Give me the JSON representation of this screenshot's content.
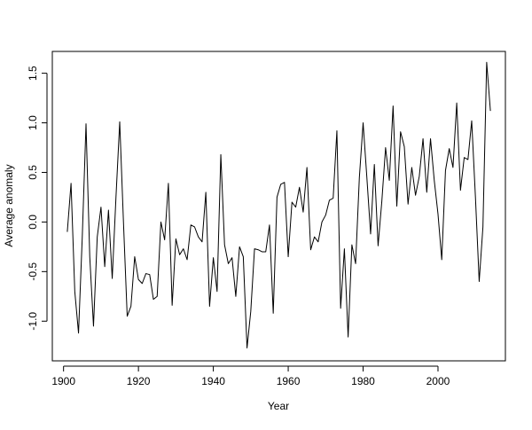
{
  "chart_data": {
    "type": "line",
    "xlabel": "Year",
    "ylabel": "Average anomaly",
    "xlim": [
      1897,
      2018
    ],
    "ylim": [
      -1.4,
      1.72
    ],
    "x_ticks": [
      1900,
      1920,
      1940,
      1960,
      1980,
      2000
    ],
    "y_ticks": [
      -1.0,
      -0.5,
      0.0,
      0.5,
      1.0,
      1.5
    ],
    "y_tick_labels": [
      "-1.0",
      "-0.5",
      "0.0",
      "0.5",
      "1.0",
      "1.5"
    ],
    "grid": false,
    "line_color": "#000000",
    "series": [
      {
        "x": [
          1901,
          1902,
          1903,
          1904,
          1905,
          1906,
          1907,
          1908,
          1909,
          1910,
          1911,
          1912,
          1913,
          1914,
          1915,
          1916,
          1917,
          1918,
          1919,
          1920,
          1921,
          1922,
          1923,
          1924,
          1925,
          1926,
          1927,
          1928,
          1929,
          1930,
          1931,
          1932,
          1933,
          1934,
          1935,
          1936,
          1937,
          1938,
          1939,
          1940,
          1941,
          1942,
          1943,
          1944,
          1945,
          1946,
          1947,
          1948,
          1949,
          1950,
          1951,
          1952,
          1953,
          1954,
          1955,
          1956,
          1957,
          1958,
          1959,
          1960,
          1961,
          1962,
          1963,
          1964,
          1965,
          1966,
          1967,
          1968,
          1969,
          1970,
          1971,
          1972,
          1973,
          1974,
          1975,
          1976,
          1977,
          1978,
          1979,
          1980,
          1981,
          1982,
          1983,
          1984,
          1985,
          1986,
          1987,
          1988,
          1989,
          1990,
          1991,
          1992,
          1993,
          1994,
          1995,
          1996,
          1997,
          1998,
          1999,
          2000,
          2001,
          2002,
          2003,
          2004,
          2005,
          2006,
          2007,
          2008,
          2009,
          2010,
          2011,
          2012,
          2013,
          2014
        ],
        "values": [
          -0.1,
          0.39,
          -0.7,
          -1.12,
          -0.15,
          0.99,
          -0.35,
          -1.05,
          -0.15,
          0.15,
          -0.45,
          0.12,
          -0.57,
          0.25,
          1.01,
          0.0,
          -0.95,
          -0.85,
          -0.35,
          -0.58,
          -0.62,
          -0.52,
          -0.53,
          -0.78,
          -0.75,
          0.0,
          -0.18,
          0.39,
          -0.84,
          -0.17,
          -0.33,
          -0.27,
          -0.38,
          -0.03,
          -0.05,
          -0.15,
          -0.2,
          0.3,
          -0.85,
          -0.36,
          -0.7,
          0.68,
          -0.23,
          -0.42,
          -0.36,
          -0.75,
          -0.25,
          -0.35,
          -1.27,
          -0.9,
          -0.27,
          -0.28,
          -0.3,
          -0.3,
          -0.03,
          -0.92,
          0.25,
          0.38,
          0.4,
          -0.35,
          0.2,
          0.15,
          0.35,
          0.1,
          0.55,
          -0.28,
          -0.15,
          -0.2,
          0.0,
          0.07,
          0.22,
          0.24,
          0.92,
          -0.87,
          -0.27,
          -1.16,
          -0.23,
          -0.42,
          0.45,
          1.0,
          0.45,
          -0.12,
          0.58,
          -0.24,
          0.21,
          0.75,
          0.42,
          1.17,
          0.16,
          0.91,
          0.76,
          0.18,
          0.55,
          0.27,
          0.46,
          0.84,
          0.3,
          0.84,
          0.42,
          0.08,
          -0.38,
          0.52,
          0.74,
          0.55,
          1.2,
          0.32,
          0.65,
          0.63,
          1.02,
          0.25,
          -0.6,
          -0.05,
          1.61,
          1.12
        ]
      }
    ]
  }
}
